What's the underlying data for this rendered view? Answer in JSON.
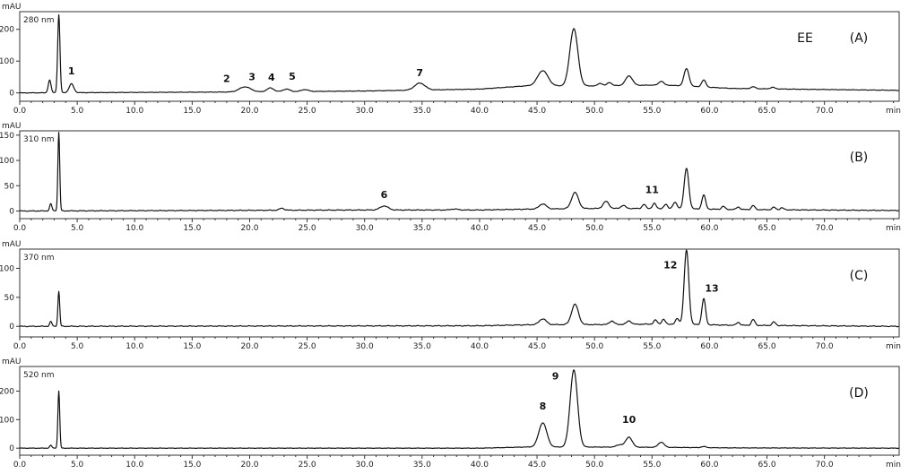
{
  "chart_data": [
    {
      "type": "line",
      "panel_label": "(A)",
      "extra_label": "EE",
      "wavelength": "280 nm",
      "ylabel": "mAU",
      "xlabel": "min",
      "xlim": [
        0,
        76.5
      ],
      "ylim": [
        -15,
        250
      ],
      "yticks": [
        0,
        100,
        200
      ],
      "xticks": [
        "0.0",
        "5.0",
        "10.0",
        "15.0",
        "20.0",
        "25.0",
        "30.0",
        "35.0",
        "40.0",
        "45.0",
        "50.0",
        "55.0",
        "60.0",
        "65.0",
        "70.0"
      ],
      "baseline": [
        [
          0,
          0
        ],
        [
          20,
          3
        ],
        [
          30,
          6
        ],
        [
          40,
          12
        ],
        [
          44,
          22
        ],
        [
          50,
          22
        ],
        [
          56,
          25
        ],
        [
          62,
          14
        ],
        [
          76.5,
          8
        ]
      ],
      "peaks": [
        {
          "x": 2.6,
          "y": 40,
          "w": 0.12
        },
        {
          "x": 3.4,
          "y": 245,
          "w": 0.1
        },
        {
          "x": 4.5,
          "y": 28,
          "w": 0.2
        },
        {
          "x": 19.6,
          "y": 16,
          "w": 0.5
        },
        {
          "x": 21.8,
          "y": 12,
          "w": 0.3
        },
        {
          "x": 23.2,
          "y": 8,
          "w": 0.3
        },
        {
          "x": 24.8,
          "y": 6,
          "w": 0.3
        },
        {
          "x": 34.8,
          "y": 22,
          "w": 0.45
        },
        {
          "x": 45.5,
          "y": 48,
          "w": 0.45
        },
        {
          "x": 48.2,
          "y": 180,
          "w": 0.35
        },
        {
          "x": 50.5,
          "y": 8,
          "w": 0.2
        },
        {
          "x": 51.3,
          "y": 10,
          "w": 0.2
        },
        {
          "x": 53,
          "y": 30,
          "w": 0.3
        },
        {
          "x": 55.8,
          "y": 12,
          "w": 0.2
        },
        {
          "x": 58,
          "y": 55,
          "w": 0.22
        },
        {
          "x": 59.5,
          "y": 22,
          "w": 0.18
        },
        {
          "x": 63.8,
          "y": 6,
          "w": 0.2
        },
        {
          "x": 65.5,
          "y": 5,
          "w": 0.2
        }
      ],
      "labels": [
        {
          "text": "1",
          "x": 4.5,
          "y": 58
        },
        {
          "text": "2",
          "x": 18,
          "y": 34
        },
        {
          "text": "3",
          "x": 20.2,
          "y": 40
        },
        {
          "text": "4",
          "x": 21.9,
          "y": 38
        },
        {
          "text": "5",
          "x": 23.7,
          "y": 42
        },
        {
          "text": "7",
          "x": 34.8,
          "y": 52
        }
      ]
    },
    {
      "type": "line",
      "panel_label": "(B)",
      "wavelength": "310 nm",
      "ylabel": "mAU",
      "xlabel": "min",
      "xlim": [
        0,
        76.5
      ],
      "ylim": [
        -8,
        155
      ],
      "yticks": [
        0,
        50,
        100,
        150
      ],
      "xticks": [
        "0.0",
        "5.0",
        "10.0",
        "15.0",
        "20.0",
        "25.0",
        "30.0",
        "35.0",
        "40.0",
        "45.0",
        "50.0",
        "55.0",
        "60.0",
        "65.0",
        "70.0"
      ],
      "baseline": [
        [
          0,
          0
        ],
        [
          30,
          2
        ],
        [
          40,
          2
        ],
        [
          45,
          4
        ],
        [
          50,
          5
        ],
        [
          56,
          5
        ],
        [
          62,
          3
        ],
        [
          76.5,
          1
        ]
      ],
      "peaks": [
        {
          "x": 2.7,
          "y": 14,
          "w": 0.1
        },
        {
          "x": 3.4,
          "y": 155,
          "w": 0.08
        },
        {
          "x": 22.8,
          "y": 4,
          "w": 0.2
        },
        {
          "x": 31.7,
          "y": 8,
          "w": 0.35
        },
        {
          "x": 37.8,
          "y": 2,
          "w": 0.3
        },
        {
          "x": 45.5,
          "y": 10,
          "w": 0.3
        },
        {
          "x": 48.3,
          "y": 32,
          "w": 0.3
        },
        {
          "x": 51,
          "y": 14,
          "w": 0.25
        },
        {
          "x": 52.5,
          "y": 6,
          "w": 0.2
        },
        {
          "x": 54.3,
          "y": 8,
          "w": 0.15
        },
        {
          "x": 55.2,
          "y": 10,
          "w": 0.15
        },
        {
          "x": 56.2,
          "y": 8,
          "w": 0.15
        },
        {
          "x": 57,
          "y": 12,
          "w": 0.18
        },
        {
          "x": 58,
          "y": 80,
          "w": 0.2
        },
        {
          "x": 59.5,
          "y": 28,
          "w": 0.16
        },
        {
          "x": 61.2,
          "y": 6,
          "w": 0.15
        },
        {
          "x": 62.5,
          "y": 5,
          "w": 0.15
        },
        {
          "x": 63.8,
          "y": 8,
          "w": 0.15
        },
        {
          "x": 65.6,
          "y": 5,
          "w": 0.15
        },
        {
          "x": 66.3,
          "y": 4,
          "w": 0.15
        }
      ],
      "labels": [
        {
          "text": "6",
          "x": 31.7,
          "y": 26
        },
        {
          "text": "11",
          "x": 55,
          "y": 35
        }
      ]
    },
    {
      "type": "line",
      "panel_label": "(C)",
      "wavelength": "370 nm",
      "ylabel": "mAU",
      "xlabel": "min",
      "xlim": [
        0,
        76.5
      ],
      "ylim": [
        -12,
        130
      ],
      "yticks": [
        0,
        50,
        100
      ],
      "xticks": [
        "0.0",
        "5.0",
        "10.0",
        "15.0",
        "20.0",
        "25.0",
        "30.0",
        "35.0",
        "40.0",
        "45.0",
        "50.0",
        "55.0",
        "60.0",
        "65.0",
        "70.0"
      ],
      "baseline": [
        [
          0,
          0
        ],
        [
          40,
          1
        ],
        [
          45,
          3
        ],
        [
          50,
          3
        ],
        [
          56,
          4
        ],
        [
          62,
          2
        ],
        [
          76.5,
          0
        ]
      ],
      "peaks": [
        {
          "x": 2.7,
          "y": 8,
          "w": 0.1
        },
        {
          "x": 3.4,
          "y": 60,
          "w": 0.08
        },
        {
          "x": 45.5,
          "y": 10,
          "w": 0.3
        },
        {
          "x": 48.3,
          "y": 35,
          "w": 0.3
        },
        {
          "x": 51.5,
          "y": 6,
          "w": 0.2
        },
        {
          "x": 53,
          "y": 6,
          "w": 0.2
        },
        {
          "x": 55.3,
          "y": 7,
          "w": 0.15
        },
        {
          "x": 56,
          "y": 8,
          "w": 0.15
        },
        {
          "x": 57.2,
          "y": 10,
          "w": 0.15
        },
        {
          "x": 58,
          "y": 128,
          "w": 0.2
        },
        {
          "x": 59.5,
          "y": 45,
          "w": 0.16
        },
        {
          "x": 62.5,
          "y": 5,
          "w": 0.15
        },
        {
          "x": 63.8,
          "y": 10,
          "w": 0.15
        },
        {
          "x": 65.6,
          "y": 6,
          "w": 0.15
        }
      ],
      "labels": [
        {
          "text": "12",
          "x": 56.6,
          "y": 100
        },
        {
          "text": "13",
          "x": 60.2,
          "y": 60
        }
      ]
    },
    {
      "type": "line",
      "panel_label": "(D)",
      "wavelength": "520 nm",
      "ylabel": "mAU",
      "xlabel": "min",
      "xlim": [
        0,
        76.5
      ],
      "ylim": [
        -12,
        280
      ],
      "yticks": [
        0,
        100,
        200
      ],
      "xticks": [
        "0.0",
        "5.0",
        "10.0",
        "15.0",
        "20.0",
        "25.0",
        "30.0",
        "35.0",
        "40.0",
        "45.0",
        "50.0",
        "55.0",
        "60.0",
        "65.0",
        "70.0"
      ],
      "baseline": [
        [
          0,
          0
        ],
        [
          40,
          0
        ],
        [
          44,
          4
        ],
        [
          50,
          4
        ],
        [
          56,
          3
        ],
        [
          62,
          1
        ],
        [
          76.5,
          0
        ]
      ],
      "peaks": [
        {
          "x": 2.7,
          "y": 10,
          "w": 0.1
        },
        {
          "x": 3.4,
          "y": 200,
          "w": 0.08
        },
        {
          "x": 45.5,
          "y": 85,
          "w": 0.35
        },
        {
          "x": 48.2,
          "y": 270,
          "w": 0.32
        },
        {
          "x": 52.2,
          "y": 8,
          "w": 0.3
        },
        {
          "x": 53,
          "y": 35,
          "w": 0.28
        },
        {
          "x": 55.8,
          "y": 18,
          "w": 0.25
        },
        {
          "x": 59.5,
          "y": 4,
          "w": 0.2
        }
      ],
      "labels": [
        {
          "text": "8",
          "x": 45.5,
          "y": 135
        },
        {
          "text": "9",
          "x": 46.6,
          "y": 240
        },
        {
          "text": "10",
          "x": 53,
          "y": 88
        }
      ]
    }
  ]
}
